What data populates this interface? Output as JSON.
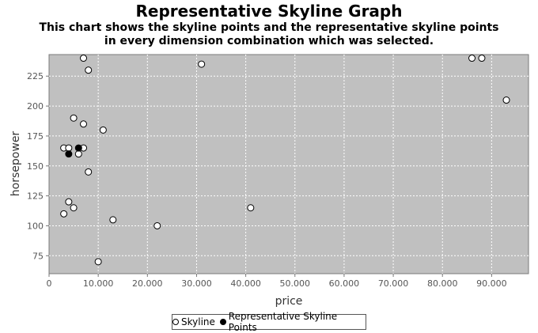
{
  "chart_data": {
    "type": "scatter",
    "title": "Representative Skyline Graph",
    "subtitle": "This chart shows the skyline points and the representative skyline points in every dimension combination which was selected.",
    "xlabel": "price",
    "ylabel": "horsepower",
    "xlim": [
      0,
      97500
    ],
    "ylim": [
      60,
      243
    ],
    "x_ticks": [
      0,
      10000,
      20000,
      30000,
      40000,
      50000,
      60000,
      70000,
      80000,
      90000
    ],
    "x_tick_labels": [
      "0",
      "10.000",
      "20.000",
      "30.000",
      "40.000",
      "50.000",
      "60.000",
      "70.000",
      "80.000",
      "90.000"
    ],
    "y_ticks": [
      75,
      100,
      125,
      150,
      175,
      200,
      225
    ],
    "grid": true,
    "background": "#c0c0c0",
    "legend_position": "bottom-center",
    "series": [
      {
        "name": "Skyline",
        "marker": "open-circle",
        "color": "#ffffff",
        "points": [
          [
            7000,
            240
          ],
          [
            8000,
            230
          ],
          [
            31000,
            235
          ],
          [
            86000,
            240
          ],
          [
            88000,
            240
          ],
          [
            93000,
            205
          ],
          [
            5000,
            190
          ],
          [
            7000,
            185
          ],
          [
            11000,
            180
          ],
          [
            3000,
            165
          ],
          [
            4000,
            165
          ],
          [
            7000,
            165
          ],
          [
            6000,
            160
          ],
          [
            8000,
            145
          ],
          [
            4000,
            120
          ],
          [
            5000,
            115
          ],
          [
            3000,
            110
          ],
          [
            41000,
            115
          ],
          [
            13000,
            105
          ],
          [
            22000,
            100
          ],
          [
            10000,
            70
          ]
        ]
      },
      {
        "name": "Representative Skyline Points",
        "marker": "filled-circle",
        "color": "#000000",
        "points": [
          [
            6000,
            165
          ],
          [
            4000,
            160
          ]
        ]
      }
    ]
  }
}
